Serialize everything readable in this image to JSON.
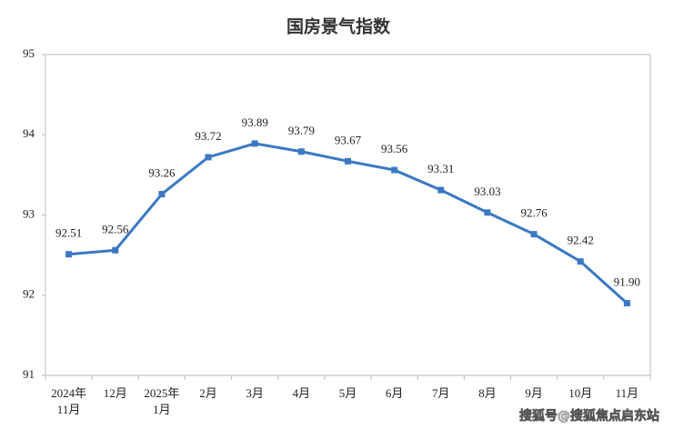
{
  "chart_data": {
    "type": "line",
    "title": "国房景气指数",
    "categories": [
      [
        "2024年",
        "11月"
      ],
      [
        "12月"
      ],
      [
        "2025年",
        "1月"
      ],
      [
        "2月"
      ],
      [
        "3月"
      ],
      [
        "4月"
      ],
      [
        "5月"
      ],
      [
        "6月"
      ],
      [
        "7月"
      ],
      [
        "8月"
      ],
      [
        "9月"
      ],
      [
        "10月"
      ],
      [
        "11月"
      ]
    ],
    "values": [
      92.51,
      92.56,
      93.26,
      93.72,
      93.89,
      93.79,
      93.67,
      93.56,
      93.31,
      93.03,
      92.76,
      92.42,
      91.9
    ],
    "value_labels": [
      "92.51",
      "92.56",
      "93.26",
      "93.72",
      "93.89",
      "93.79",
      "93.67",
      "93.56",
      "93.31",
      "93.03",
      "92.76",
      "92.42",
      "91.90"
    ],
    "color": "#3a78c3",
    "ylim": [
      91,
      95
    ],
    "yticks": [
      91,
      92,
      93,
      94,
      95
    ],
    "grid": false,
    "watermark": "搜狐号@搜狐焦点启东站"
  }
}
